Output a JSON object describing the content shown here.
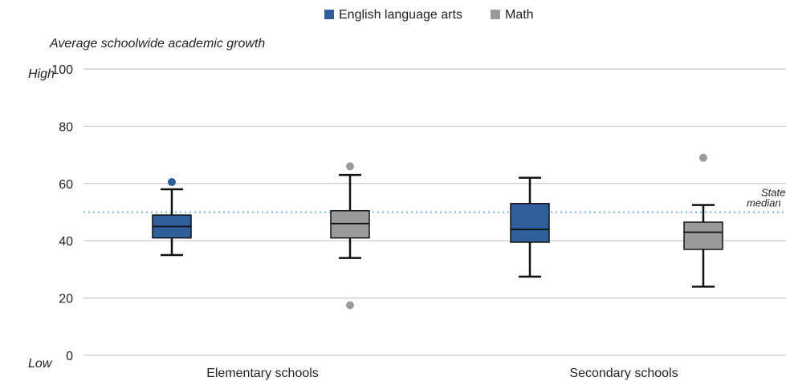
{
  "legend": [
    {
      "label": "English language arts",
      "color": "#2f5f9a"
    },
    {
      "label": "Math",
      "color": "#9a9a9a"
    }
  ],
  "axis_title": "Average schoolwide academic growth",
  "y_end_labels": {
    "high": "High",
    "low": "Low"
  },
  "reference_line": {
    "value": 50,
    "label_line1": "State",
    "label_line2": "median",
    "color": "#6fb0dd"
  },
  "chart_data": {
    "type": "box",
    "title": "",
    "ylabel": "Average schoolwide academic growth",
    "ylim": [
      0,
      100
    ],
    "yticks": [
      0,
      20,
      40,
      60,
      80,
      100
    ],
    "grid": true,
    "legend_position": "top-center",
    "categories": [
      "Elementary schools",
      "Secondary schools"
    ],
    "series": [
      {
        "name": "English language arts",
        "color": "#2f5f9a",
        "boxes": [
          {
            "category": "Elementary schools",
            "min": 35,
            "q1": 41,
            "median": 45,
            "q3": 49,
            "max": 58,
            "outliers": [
              60.5
            ]
          },
          {
            "category": "Secondary schools",
            "min": 27.5,
            "q1": 39.5,
            "median": 44,
            "q3": 53,
            "max": 62,
            "outliers": []
          }
        ]
      },
      {
        "name": "Math",
        "color": "#9a9a9a",
        "boxes": [
          {
            "category": "Elementary schools",
            "min": 34,
            "q1": 41,
            "median": 46,
            "q3": 50.5,
            "max": 63,
            "outliers": [
              66,
              17.5
            ]
          },
          {
            "category": "Secondary schools",
            "min": 24,
            "q1": 37,
            "median": 43,
            "q3": 46.5,
            "max": 52.5,
            "outliers": [
              69
            ]
          }
        ]
      }
    ]
  }
}
